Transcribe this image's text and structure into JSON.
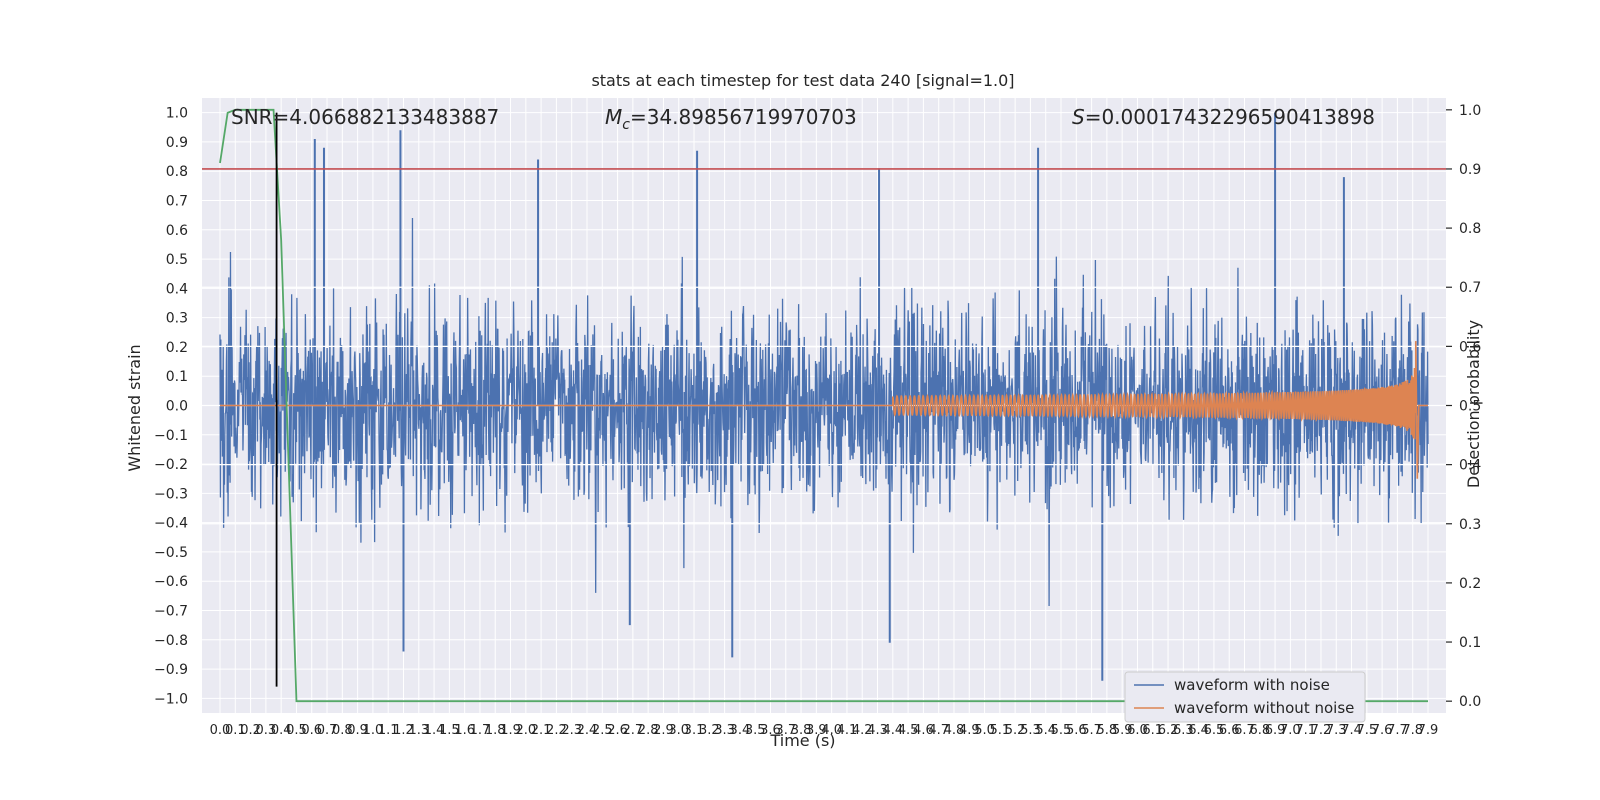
{
  "chart_data": {
    "type": "line",
    "title": "stats at each timestep for test data 240 [signal=1.0]",
    "xlabel": "Time (s)",
    "ylabel": "Whitened strain",
    "y2label": "Detection probability",
    "annotations": {
      "snr": "SNR=4.066882133483887",
      "mc_symbol": "M",
      "mc_sub": "c",
      "mc_value": "=34.89856719970703",
      "s_symbol": "S",
      "s_value": "=0.00017432296590413898"
    },
    "xlim": [
      0.0,
      7.9
    ],
    "ylim": [
      -1.05,
      1.05
    ],
    "y2lim": [
      -0.02,
      1.02
    ],
    "x_ticks": [
      0.0,
      0.1,
      0.2,
      0.3,
      0.4,
      0.5,
      0.6,
      0.7,
      0.8,
      0.9,
      1.0,
      1.1,
      1.2,
      1.3,
      1.4,
      1.5,
      1.6,
      1.7,
      1.8,
      1.9,
      2.0,
      2.1,
      2.2,
      2.3,
      2.4,
      2.5,
      2.6,
      2.7,
      2.8,
      2.9,
      3.0,
      3.1,
      3.2,
      3.3,
      3.4,
      3.5,
      3.6,
      3.7,
      3.8,
      3.9,
      4.0,
      4.1,
      4.2,
      4.3,
      4.4,
      4.5,
      4.6,
      4.7,
      4.8,
      4.9,
      5.0,
      5.1,
      5.2,
      5.3,
      5.4,
      5.5,
      5.6,
      5.7,
      5.8,
      5.9,
      6.0,
      6.1,
      6.2,
      6.3,
      6.4,
      6.5,
      6.6,
      6.7,
      6.8,
      6.9,
      7.0,
      7.1,
      7.2,
      7.3,
      7.4,
      7.5,
      7.6,
      7.7,
      7.8,
      7.9
    ],
    "x_tick_labels": [
      "0.0",
      "0.1",
      "0.2",
      "0.3",
      "0.4",
      "0.5",
      "0.6",
      "0.7",
      "0.8",
      "0.9",
      "1.0",
      "1.1",
      "1.2",
      "1.3",
      "1.4",
      "1.5",
      "1.6",
      "1.7",
      "1.8",
      "1.9",
      "2.0",
      "2.1",
      "2.2",
      "2.3",
      "2.4",
      "2.5",
      "2.6",
      "2.7",
      "2.8",
      "2.9",
      "3.0",
      "3.1",
      "3.2",
      "3.3",
      "3.4",
      "3.5",
      "3.6",
      "3.7",
      "3.8",
      "3.9",
      "4.0",
      "4.1",
      "4.2",
      "4.3",
      "4.4",
      "4.5",
      "4.6",
      "4.7",
      "4.8",
      "4.9",
      "5.0",
      "5.1",
      "5.2",
      "5.3",
      "5.4",
      "5.5",
      "5.6",
      "5.7",
      "5.8",
      "5.9",
      "6.0",
      "6.1",
      "6.2",
      "6.3",
      "6.4",
      "6.5",
      "6.6",
      "6.7",
      "6.8",
      "6.9",
      "7.0",
      "7.1",
      "7.2",
      "7.3",
      "7.4",
      "7.5",
      "7.6",
      "7.7",
      "7.8",
      "7.9"
    ],
    "y_ticks": [
      -1.0,
      -0.9,
      -0.8,
      -0.7,
      -0.6,
      -0.5,
      -0.4,
      -0.3,
      -0.2,
      -0.1,
      0.0,
      0.1,
      0.2,
      0.3,
      0.4,
      0.5,
      0.6,
      0.7,
      0.8,
      0.9,
      1.0
    ],
    "y_tick_labels": [
      "−1.0",
      "−0.9",
      "−0.8",
      "−0.7",
      "−0.6",
      "−0.5",
      "−0.4",
      "−0.3",
      "−0.2",
      "−0.1",
      "0.0",
      "0.1",
      "0.2",
      "0.3",
      "0.4",
      "0.5",
      "0.6",
      "0.7",
      "0.8",
      "0.9",
      "1.0"
    ],
    "y2_ticks": [
      0.0,
      0.1,
      0.2,
      0.3,
      0.4,
      0.5,
      0.6,
      0.7,
      0.8,
      0.9,
      1.0
    ],
    "y2_tick_labels": [
      "0.0",
      "0.1",
      "0.2",
      "0.3",
      "0.4",
      "0.5",
      "0.6",
      "0.7",
      "0.8",
      "0.9",
      "1.0"
    ],
    "grid": true,
    "legend_position": "lower-right",
    "series": [
      {
        "name": "waveform with noise",
        "color": "#4c72b0",
        "kind": "noise",
        "x_range": [
          0.0,
          7.9
        ],
        "envelope_typical": [
          -0.45,
          0.45
        ],
        "spikes": [
          {
            "x": 0.62,
            "y": 0.91
          },
          {
            "x": 0.68,
            "y": 0.88
          },
          {
            "x": 1.18,
            "y": 0.94
          },
          {
            "x": 2.08,
            "y": 0.84
          },
          {
            "x": 3.12,
            "y": 0.87
          },
          {
            "x": 4.31,
            "y": 0.81
          },
          {
            "x": 5.35,
            "y": 0.88
          },
          {
            "x": 6.9,
            "y": 1.0
          },
          {
            "x": 7.35,
            "y": 0.78
          },
          {
            "x": 5.77,
            "y": -0.94
          },
          {
            "x": 1.2,
            "y": -0.84
          },
          {
            "x": 3.35,
            "y": -0.86
          },
          {
            "x": 4.38,
            "y": -0.81
          },
          {
            "x": 2.68,
            "y": -0.75
          }
        ]
      },
      {
        "name": "waveform without noise",
        "color": "#dd8452",
        "kind": "chirp",
        "x_range": [
          4.4,
          7.82
        ],
        "peak_amplitude": 0.22,
        "peak_time": 7.82,
        "min_value": -0.25
      },
      {
        "name": "",
        "color": "#55a868",
        "kind": "probability",
        "axis": "y2",
        "x": [
          0.0,
          0.05,
          0.1,
          0.35,
          0.4,
          0.5,
          7.9
        ],
        "y": [
          0.91,
          0.995,
          1.0,
          1.0,
          0.78,
          0.0,
          0.0
        ]
      }
    ],
    "threshold": {
      "axis": "y2",
      "value": 0.9,
      "color": "#c44e52"
    },
    "marker_line": {
      "x": 0.37,
      "color": "#000000",
      "y_range": [
        -0.96,
        1.0
      ]
    }
  }
}
